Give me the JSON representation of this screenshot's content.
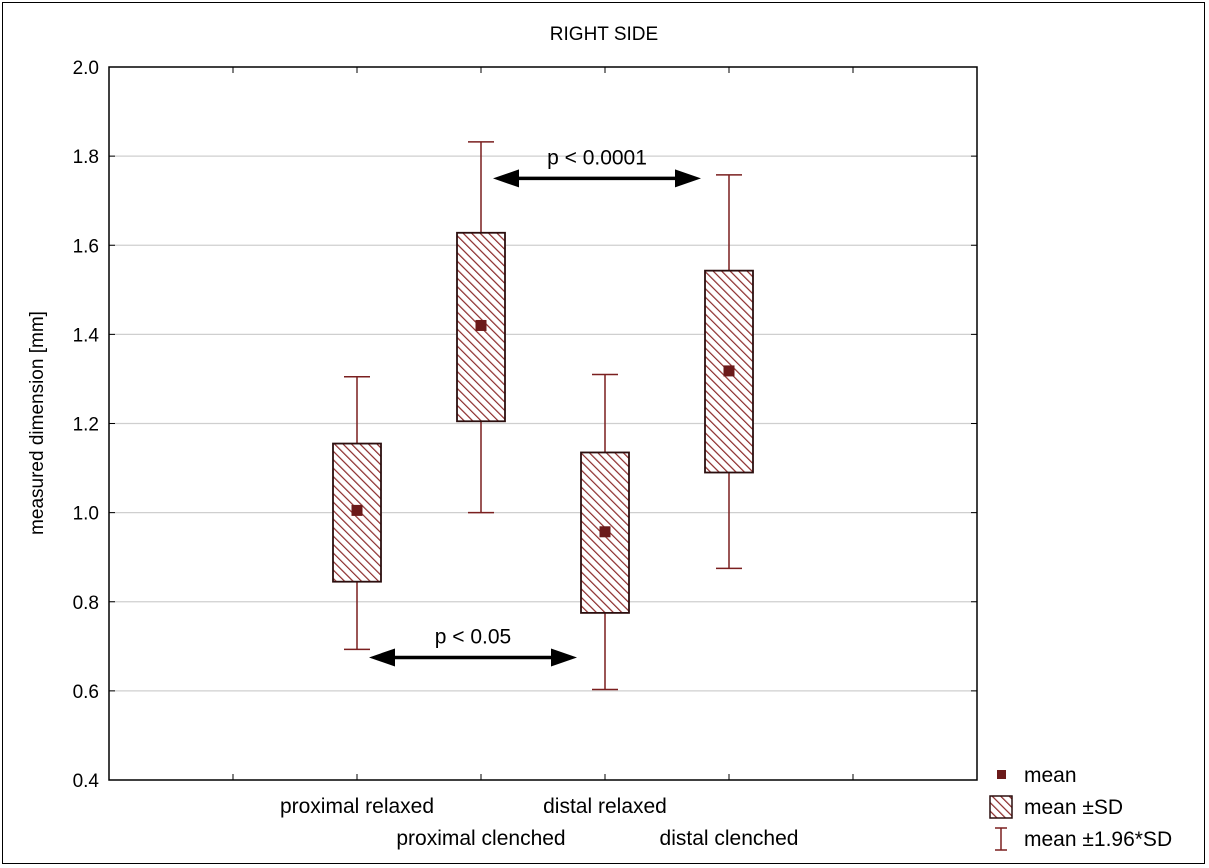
{
  "chart_data": {
    "type": "box",
    "title": "RIGHT SIDE",
    "ylabel": "measured dimension [mm]",
    "xlabel": "",
    "ylim": [
      0.4,
      2.0
    ],
    "yticks": [
      "0.4",
      "0.6",
      "0.8",
      "1.0",
      "1.2",
      "1.4",
      "1.6",
      "1.8",
      "2.0"
    ],
    "grid": true,
    "legend_position": "bottom-right",
    "categories": [
      "proximal relaxed",
      "proximal clenched",
      "distal relaxed",
      "distal clenched"
    ],
    "series": [
      {
        "mean": [
          1.005,
          1.42,
          0.957,
          1.318
        ],
        "sd_low": [
          0.845,
          1.205,
          0.775,
          1.09
        ],
        "sd_high": [
          1.155,
          1.628,
          1.135,
          1.543
        ],
        "whisker_low": [
          0.693,
          1.0,
          0.603,
          0.875
        ],
        "whisker_high": [
          1.305,
          1.832,
          1.31,
          1.758
        ]
      }
    ],
    "legend": [
      "mean",
      "mean ±SD",
      "mean ±1.96*SD"
    ],
    "annotations": [
      {
        "text": "p < 0.0001",
        "from": "proximal clenched",
        "to": "distal clenched",
        "y": 1.75
      },
      {
        "text": "p < 0.05",
        "from": "proximal relaxed",
        "to": "distal relaxed",
        "y": 0.675
      }
    ]
  },
  "colors": {
    "box": "#7a1f1f",
    "mean": "#6b1a1a",
    "grid": "#cfcfcf",
    "axis": "#000000"
  }
}
